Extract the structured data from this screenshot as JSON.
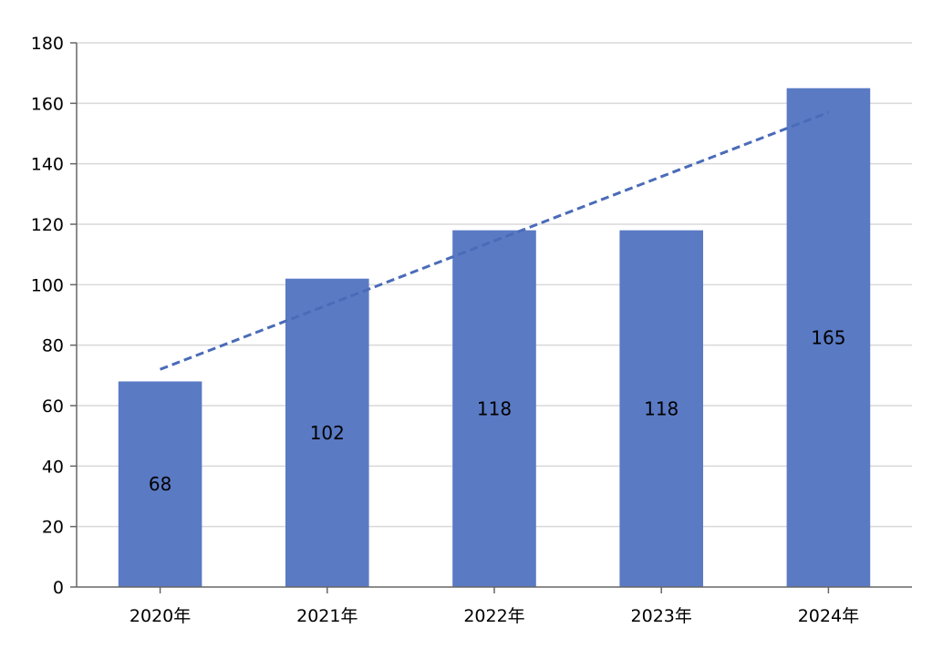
{
  "chart_data": {
    "type": "bar",
    "categories": [
      "2020年",
      "2021年",
      "2022年",
      "2023年",
      "2024年"
    ],
    "values": [
      68,
      102,
      118,
      118,
      165
    ],
    "value_labels": [
      "68",
      "102",
      "118",
      "118",
      "165"
    ],
    "y_ticks": [
      "0",
      "20",
      "40",
      "60",
      "80",
      "100",
      "120",
      "140",
      "160",
      "180"
    ],
    "ylim": [
      0,
      180
    ],
    "grid": true,
    "legend": "none",
    "title": "",
    "xlabel": "",
    "ylabel": "",
    "trendline": {
      "style": "dashed",
      "start": 72,
      "end": 157
    },
    "colors": {
      "bar": "#5a7ac4",
      "trendline": "#4a6bb8",
      "grid": "#d9d9d9",
      "axis": "#666666"
    }
  }
}
